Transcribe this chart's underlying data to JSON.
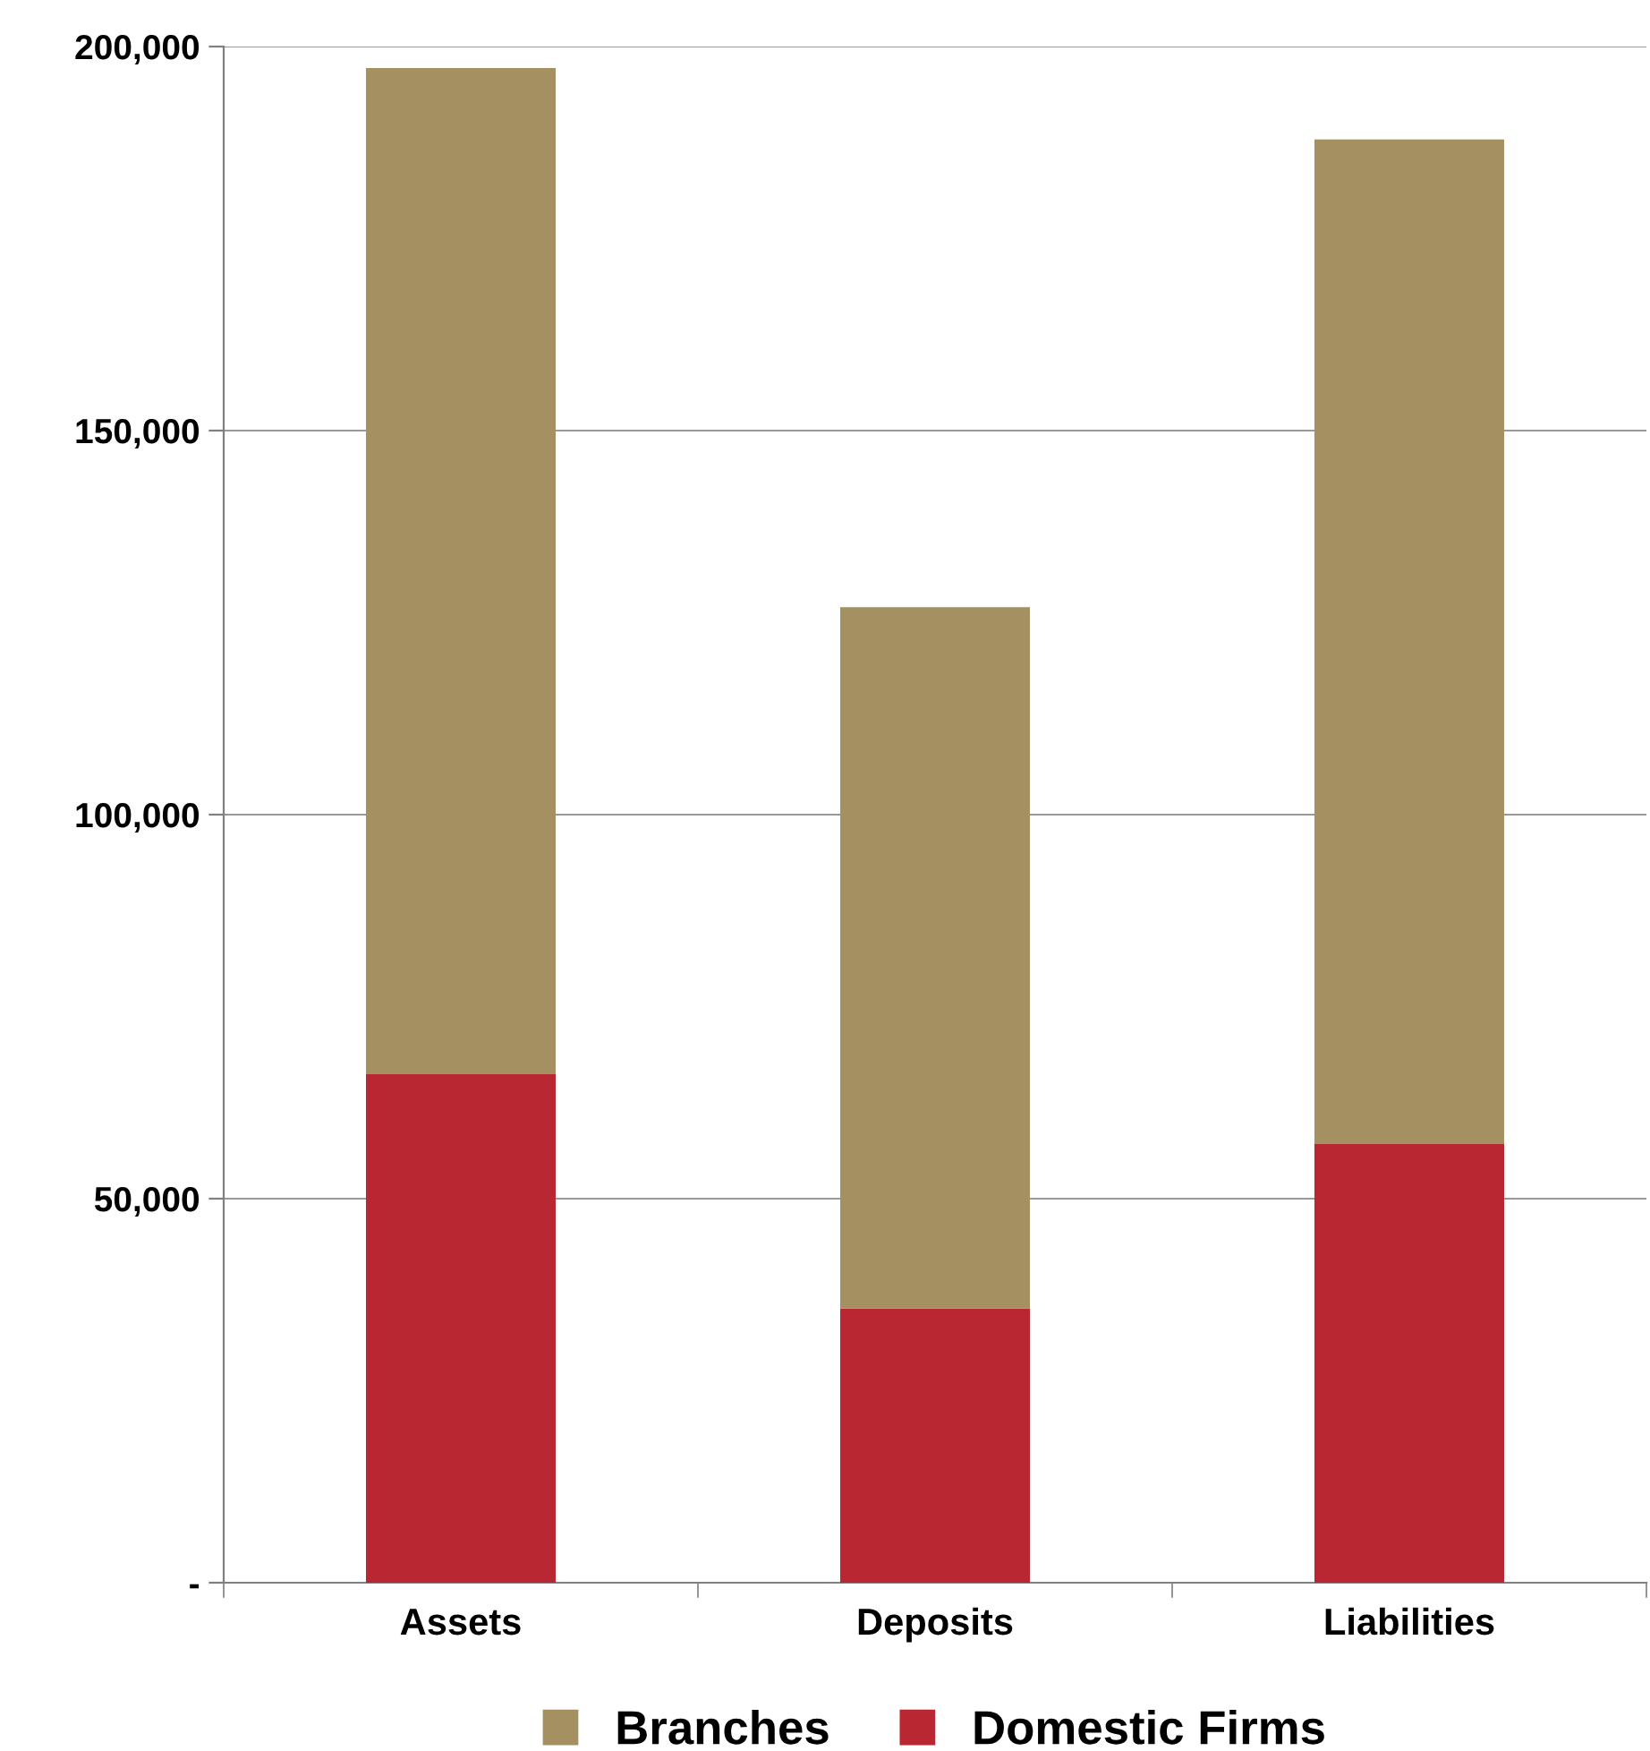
{
  "chart_data": {
    "type": "bar",
    "stacked": true,
    "categories": [
      "Assets",
      "Deposits",
      "Liabilities"
    ],
    "series": [
      {
        "name": "Domestic Firms",
        "color": "#b92832",
        "values": [
          66200,
          35700,
          57100
        ]
      },
      {
        "name": "Branches",
        "color": "#a59061",
        "values": [
          131000,
          91300,
          130800
        ]
      }
    ],
    "ylim": [
      0,
      200000
    ],
    "yticks": [
      {
        "value": 0,
        "label": "-"
      },
      {
        "value": 50000,
        "label": "50,000"
      },
      {
        "value": 100000,
        "label": "100,000"
      },
      {
        "value": 150000,
        "label": "150,000"
      },
      {
        "value": 200000,
        "label": "200,000"
      }
    ],
    "grid": "y",
    "legend": "bottom"
  }
}
